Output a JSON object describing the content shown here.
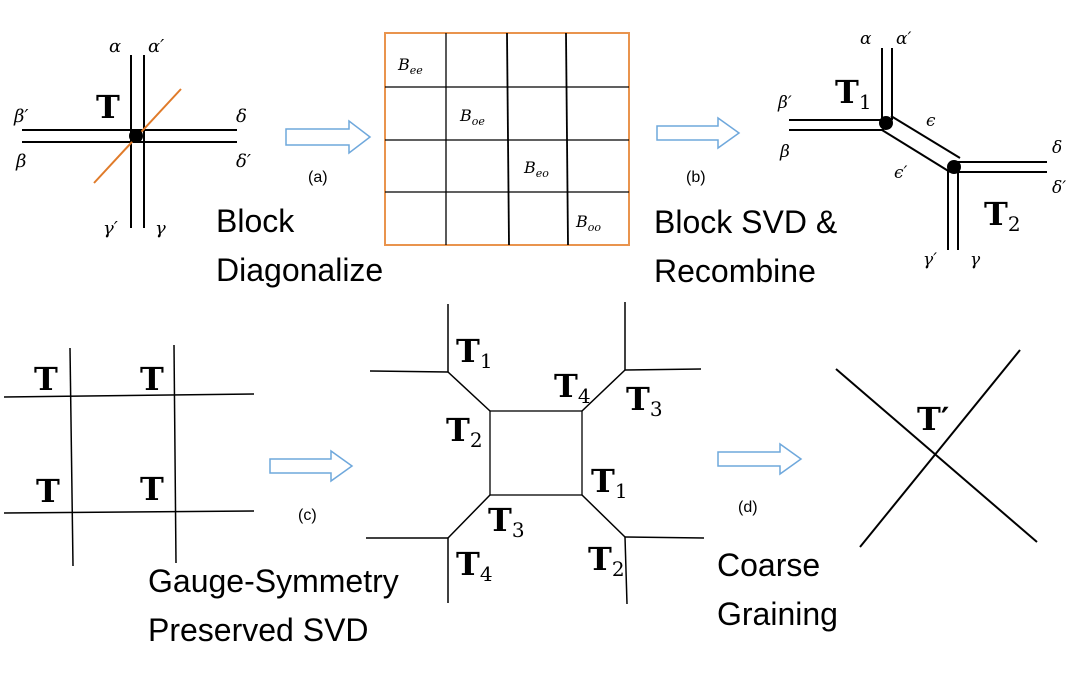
{
  "colors": {
    "line": "#000000",
    "cut_line": "#e07b2a",
    "matrix_border": "#e9944e",
    "arrow": "#6fa8dc"
  },
  "panel_a": {
    "tensor": "T",
    "legs": {
      "alpha": "α",
      "alpha_p": "α′",
      "beta": "β",
      "beta_p": "β′",
      "gamma": "γ",
      "gamma_p": "γ′",
      "delta": "δ",
      "delta_p": "δ′"
    },
    "arrow_label": "(a)",
    "caption_line1": "Block",
    "caption_line2": "Diagonalize"
  },
  "matrix": {
    "blocks": [
      {
        "base": "B",
        "sub": "ee"
      },
      {
        "base": "B",
        "sub": "oe"
      },
      {
        "base": "B",
        "sub": "eo"
      },
      {
        "base": "B",
        "sub": "oo"
      }
    ]
  },
  "panel_b": {
    "arrow_label": "(b)",
    "caption_line1": "Block SVD &",
    "caption_line2": "Recombine",
    "t1": "T",
    "t1_sub": "1",
    "t2": "T",
    "t2_sub": "2",
    "legs": {
      "alpha": "α",
      "alpha_p": "α′",
      "beta": "β",
      "beta_p": "β′",
      "gamma": "γ",
      "gamma_p": "γ′",
      "delta": "δ",
      "delta_p": "δ′",
      "epsilon": "ϵ",
      "epsilon_p": "ϵ′"
    }
  },
  "panel_c": {
    "tensors": [
      "T",
      "T",
      "T",
      "T"
    ],
    "arrow_label": "(c)",
    "caption_line1": "Gauge-Symmetry",
    "caption_line2": "Preserved SVD"
  },
  "network": {
    "labels": [
      {
        "base": "T",
        "sub": "1"
      },
      {
        "base": "T",
        "sub": "4"
      },
      {
        "base": "T",
        "sub": "3"
      },
      {
        "base": "T",
        "sub": "2"
      },
      {
        "base": "T",
        "sub": "1"
      },
      {
        "base": "T",
        "sub": "3"
      },
      {
        "base": "T",
        "sub": "4"
      },
      {
        "base": "T",
        "sub": "2"
      }
    ]
  },
  "panel_d": {
    "arrow_label": "(d)",
    "caption_line1": "Coarse",
    "caption_line2": "Graining",
    "result": "T′"
  }
}
